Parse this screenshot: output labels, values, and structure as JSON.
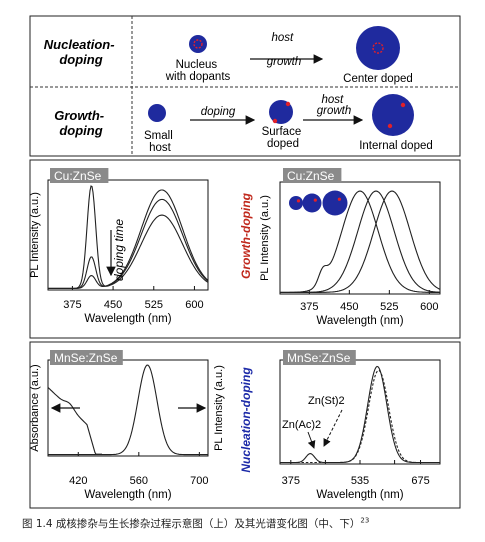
{
  "schematic": {
    "nucleation_label": "Nucleation-\ndoping",
    "nucleation_steps": [
      "Nucleus\nwith dopants",
      "Center doped"
    ],
    "nucleation_arrow": "host\ngrowth",
    "growth_label": "Growth-\ndoping",
    "growth_steps": [
      "Small\nhost",
      "Surface\ndoped",
      "Internal doped"
    ],
    "growth_arrow_1": "doping",
    "growth_arrow_2": "host\ngrowth"
  },
  "side_labels": {
    "middle": "Growth-doping",
    "bottom": "Nucleation-doping"
  },
  "colors": {
    "host_blue": "#1f2a9e",
    "dopant_red": "#e0202a",
    "growth_label": "#c0281c",
    "nucleation_label": "#1c2aa8",
    "panel_tag_bg": "#8a8a8a"
  },
  "caption": {
    "text": "图 1.4  成核掺杂与生长掺杂过程示意图（上）及其光谱变化图（中、下）",
    "ref": "23"
  },
  "chart_data": [
    {
      "type": "line",
      "panel": "middle-left",
      "tag": "Cu:ZnSe",
      "xlabel": "Wavelength (nm)",
      "ylabel": "PL Intensity (a.u.)",
      "xticks": [
        375,
        450,
        525,
        600
      ],
      "xlim": [
        330,
        625
      ],
      "ylim": [
        0,
        1.05
      ],
      "annotation": "doping time",
      "series": [
        {
          "peaks": [
            [
              410,
              0.98,
              8
            ],
            [
              540,
              0.7,
              38
            ]
          ]
        },
        {
          "peaks": [
            [
              410,
              0.3,
              8
            ],
            [
              540,
              0.85,
              38
            ]
          ]
        },
        {
          "peaks": [
            [
              410,
              0.12,
              8
            ],
            [
              540,
              0.94,
              38
            ]
          ]
        }
      ]
    },
    {
      "type": "line",
      "panel": "middle-right",
      "tag": "Cu:ZnSe",
      "xlabel": "Wavelength (nm)",
      "ylabel": "PL Intensity (a.u.)",
      "xticks": [
        375,
        450,
        525,
        600
      ],
      "xlim": [
        320,
        620
      ],
      "ylim": [
        0,
        1.05
      ],
      "series": [
        {
          "peaks": [
            [
              470,
              0.95,
              34
            ],
            [
              400,
              0.12,
              8
            ]
          ]
        },
        {
          "peaks": [
            [
              500,
              0.95,
              34
            ]
          ]
        },
        {
          "peaks": [
            [
              530,
              0.95,
              34
            ]
          ]
        }
      ]
    },
    {
      "type": "line",
      "panel": "bottom-left",
      "tag": "MnSe:ZnSe",
      "xlabel": "Wavelength (nm)",
      "ylabel_left": "Absorbance (a.u.)",
      "ylabel_right": "PL Intensity (a.u.)",
      "xticks": [
        420,
        560,
        700
      ],
      "xlim": [
        350,
        720
      ],
      "ylim": [
        0,
        1.05
      ],
      "series": [
        {
          "name": "absorbance",
          "kind": "absorbance"
        },
        {
          "name": "PL",
          "peaks": [
            [
              580,
              0.98,
              22
            ]
          ]
        }
      ]
    },
    {
      "type": "line",
      "panel": "bottom-right",
      "tag": "MnSe:ZnSe",
      "xlabel": "Wavelength (nm)",
      "xticks": [
        375,
        455,
        535,
        615,
        675
      ],
      "xtick_labels": [
        "375",
        "",
        "535",
        "",
        "675"
      ],
      "xlim": [
        350,
        720
      ],
      "ylim": [
        0,
        1.05
      ],
      "labels": [
        "Zn(St)2",
        "Zn(Ac)2"
      ],
      "series": [
        {
          "name": "Zn(Ac)2",
          "peaks": [
            [
              575,
              0.97,
              22
            ],
            [
              420,
              0.09,
              10
            ]
          ]
        },
        {
          "name": "Zn(St)2",
          "dashed": true,
          "peaks": [
            [
              578,
              0.93,
              23
            ]
          ]
        }
      ]
    }
  ]
}
